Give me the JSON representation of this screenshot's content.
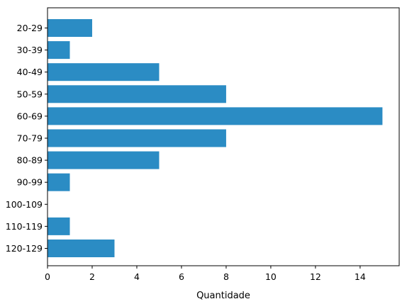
{
  "chart_data": {
    "type": "bar",
    "orientation": "horizontal",
    "categories": [
      "20-29",
      "30-39",
      "40-49",
      "50-59",
      "60-69",
      "70-79",
      "80-89",
      "90-99",
      "100-109",
      "110-119",
      "120-129"
    ],
    "values": [
      2,
      1,
      5,
      8,
      15,
      8,
      5,
      1,
      0,
      1,
      3
    ],
    "title": "",
    "xlabel": "Quantidade",
    "ylabel": "",
    "xlim": [
      0,
      15.75
    ],
    "xticks": [
      0,
      2,
      4,
      6,
      8,
      10,
      12,
      14
    ],
    "grid": false,
    "legend": "none",
    "bar_color": "#2b8cc4"
  }
}
